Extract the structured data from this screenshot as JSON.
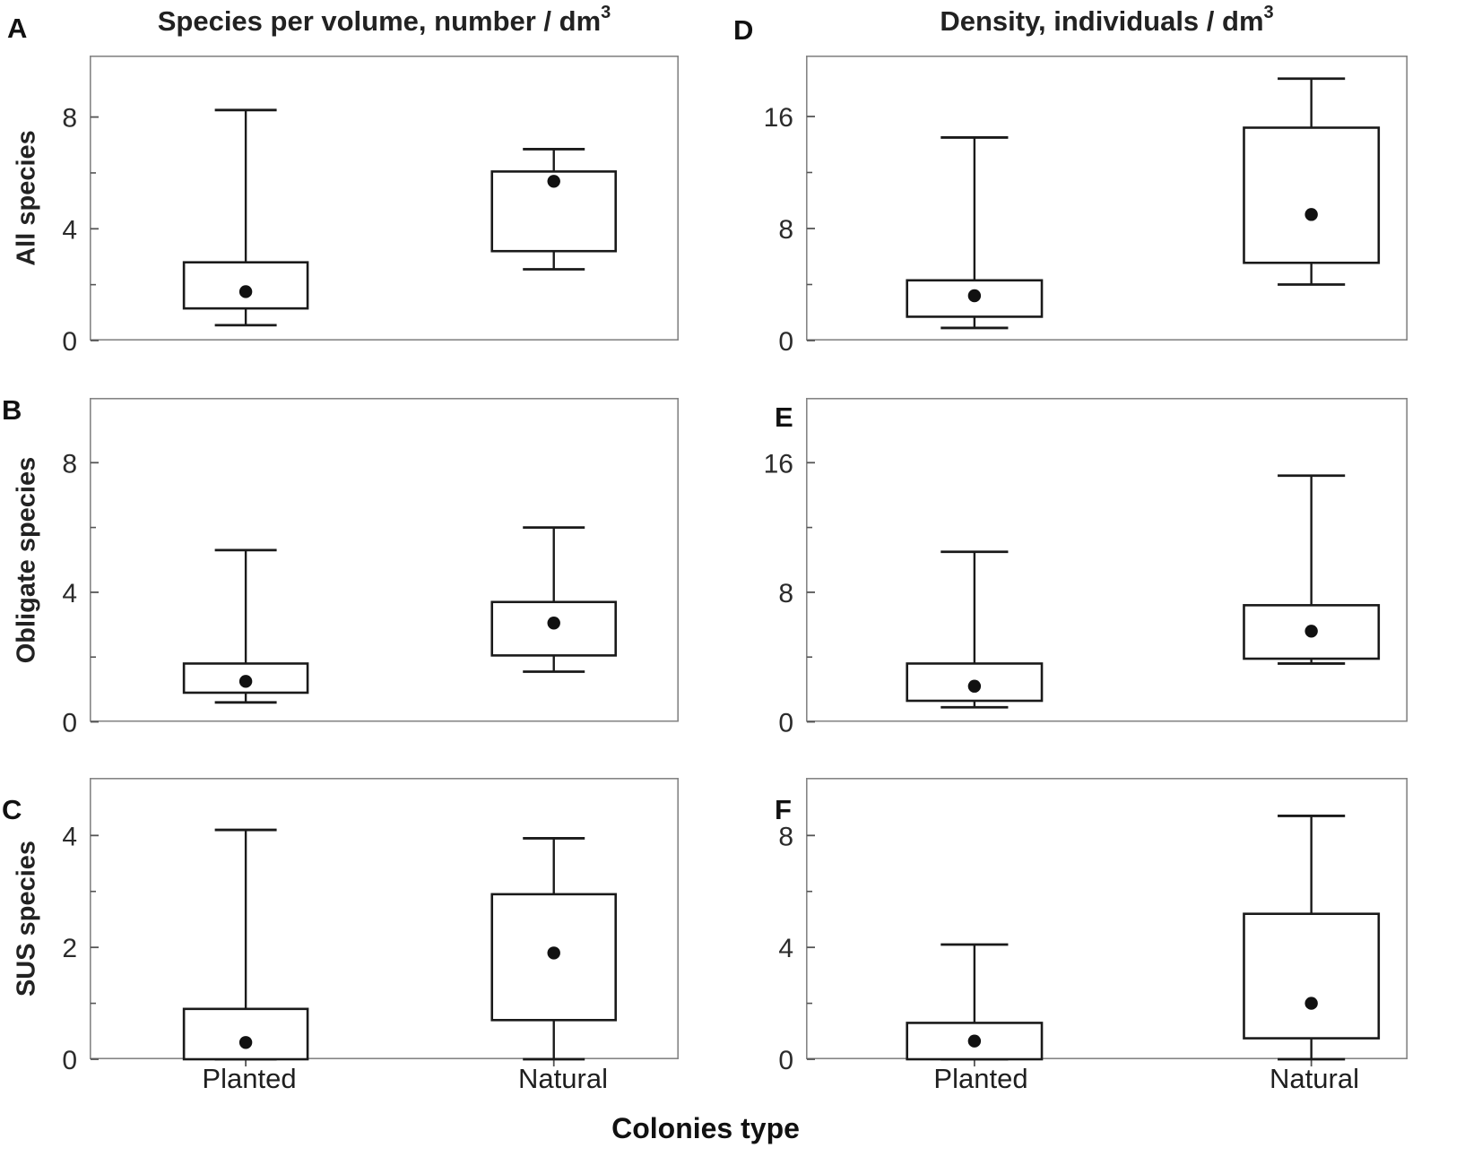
{
  "chart_data": {
    "type": "boxplot",
    "layout": "2x3-grid",
    "center_marker": "mean-dot",
    "grid": false,
    "x_axis_title": "Colonies type",
    "x_categories": [
      "Planted",
      "Natural"
    ],
    "columns": [
      {
        "title": "Species per volume, number / dm",
        "title_sup": "3"
      },
      {
        "title": "Density, individuals / dm",
        "title_sup": "3"
      }
    ],
    "panels": [
      {
        "label": "A",
        "col": "left",
        "row": 0,
        "ylabel": "All species",
        "ylim": [
          0,
          10.2
        ],
        "yticks": [
          0,
          4,
          8
        ],
        "yticks_minor": [
          2,
          6
        ],
        "series": [
          {
            "category": "Planted",
            "whisker_low": 0.55,
            "q1": 1.15,
            "mean": 1.75,
            "q3": 2.8,
            "whisker_high": 8.25
          },
          {
            "category": "Natural",
            "whisker_low": 2.55,
            "q1": 3.2,
            "mean": 5.7,
            "q3": 6.05,
            "whisker_high": 6.85
          }
        ]
      },
      {
        "label": "B",
        "col": "left",
        "row": 1,
        "ylabel": "Obligate species",
        "ylim": [
          0,
          10.0
        ],
        "yticks": [
          0,
          4,
          8
        ],
        "yticks_minor": [
          2,
          6
        ],
        "series": [
          {
            "category": "Planted",
            "whisker_low": 0.6,
            "q1": 0.9,
            "mean": 1.25,
            "q3": 1.8,
            "whisker_high": 5.3
          },
          {
            "category": "Natural",
            "whisker_low": 1.55,
            "q1": 2.05,
            "mean": 3.05,
            "q3": 3.7,
            "whisker_high": 6.0
          }
        ]
      },
      {
        "label": "C",
        "col": "left",
        "row": 2,
        "ylabel": "SUS species",
        "ylim": [
          0,
          5.03
        ],
        "yticks": [
          0,
          2,
          4
        ],
        "yticks_minor": [
          1,
          3
        ],
        "series": [
          {
            "category": "Planted",
            "whisker_low": 0,
            "q1": 0,
            "mean": 0.3,
            "q3": 0.9,
            "whisker_high": 4.1
          },
          {
            "category": "Natural",
            "whisker_low": 0,
            "q1": 0.7,
            "mean": 1.9,
            "q3": 2.95,
            "whisker_high": 3.95
          }
        ]
      },
      {
        "label": "D",
        "col": "right",
        "row": 0,
        "ylabel": "",
        "ylim": [
          0,
          20.35
        ],
        "yticks": [
          0,
          8,
          16
        ],
        "yticks_minor": [
          4,
          12
        ],
        "series": [
          {
            "category": "Planted",
            "whisker_low": 0.9,
            "q1": 1.7,
            "mean": 3.2,
            "q3": 4.3,
            "whisker_high": 14.5
          },
          {
            "category": "Natural",
            "whisker_low": 4.0,
            "q1": 5.55,
            "mean": 9.0,
            "q3": 15.2,
            "whisker_high": 18.7
          }
        ]
      },
      {
        "label": "E",
        "col": "right",
        "row": 1,
        "ylabel": "",
        "ylim": [
          0,
          20.0
        ],
        "yticks": [
          0,
          8,
          16
        ],
        "yticks_minor": [
          4,
          12
        ],
        "series": [
          {
            "category": "Planted",
            "whisker_low": 0.9,
            "q1": 1.3,
            "mean": 2.2,
            "q3": 3.6,
            "whisker_high": 10.5
          },
          {
            "category": "Natural",
            "whisker_low": 3.6,
            "q1": 3.9,
            "mean": 5.6,
            "q3": 7.2,
            "whisker_high": 15.2
          }
        ]
      },
      {
        "label": "F",
        "col": "right",
        "row": 2,
        "ylabel": "",
        "ylim": [
          0,
          10.06
        ],
        "yticks": [
          0,
          4,
          8
        ],
        "yticks_minor": [
          2,
          6
        ],
        "series": [
          {
            "category": "Planted",
            "whisker_low": 0,
            "q1": 0,
            "mean": 0.65,
            "q3": 1.3,
            "whisker_high": 4.1
          },
          {
            "category": "Natural",
            "whisker_low": 0,
            "q1": 0.75,
            "mean": 2.0,
            "q3": 5.2,
            "whisker_high": 8.7
          }
        ]
      }
    ]
  }
}
